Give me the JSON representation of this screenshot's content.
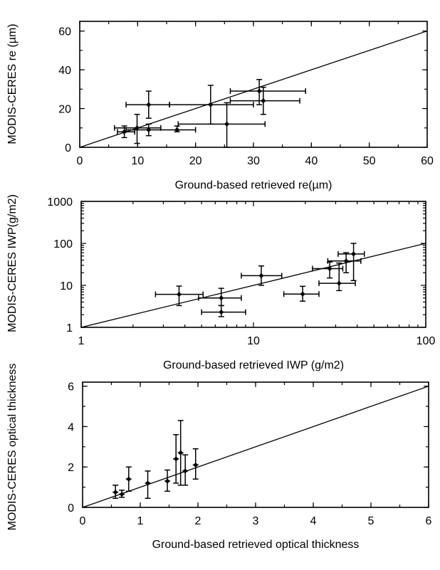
{
  "chart_data": [
    {
      "type": "scatter",
      "xlabel": "Ground-based retrieved re(µm)",
      "ylabel": "MODIS-CERES re (µm)",
      "xscale": "linear",
      "yscale": "linear",
      "xlim": [
        0,
        60
      ],
      "ylim": [
        0,
        65
      ],
      "xticks": [
        "0",
        "10",
        "20",
        "30",
        "40",
        "50",
        "60"
      ],
      "xtick_values": [
        0,
        10,
        20,
        30,
        40,
        50,
        60
      ],
      "yticks": [
        "0",
        "20",
        "40",
        "60"
      ],
      "ytick_values": [
        0,
        20,
        40,
        60
      ],
      "reference_line": "1:1",
      "grid": false,
      "points": [
        {
          "x": 7.7,
          "y": 8,
          "xerr": [
            6.5,
            9.5
          ],
          "yerr": [
            5,
            11
          ]
        },
        {
          "x": 9.9,
          "y": 10,
          "xerr": [
            6,
            14
          ],
          "yerr": [
            2,
            17
          ]
        },
        {
          "x": 11.9,
          "y": 9,
          "xerr": [
            8,
            20
          ],
          "yerr": [
            6,
            12
          ]
        },
        {
          "x": 11.9,
          "y": 22,
          "xerr": [
            8,
            15.5
          ],
          "yerr": [
            15,
            29
          ]
        },
        {
          "x": 16.8,
          "y": 9,
          "xerr": [
            16.8,
            16.8
          ],
          "yerr": [
            8,
            11
          ]
        },
        {
          "x": 22.6,
          "y": 22,
          "xerr": [
            15.5,
            30
          ],
          "yerr": [
            12,
            32
          ]
        },
        {
          "x": 25.4,
          "y": 12,
          "xerr": [
            17,
            32
          ],
          "yerr": [
            0,
            23
          ]
        },
        {
          "x": 31,
          "y": 29,
          "xerr": [
            26,
            39
          ],
          "yerr": [
            22,
            35
          ]
        },
        {
          "x": 31.7,
          "y": 24,
          "xerr": [
            26,
            38
          ],
          "yerr": [
            17,
            31
          ]
        }
      ]
    },
    {
      "type": "scatter",
      "xlabel": "Ground-based retrieved IWP (g/m2)",
      "ylabel": "MODIS-CERES IWP(g/m2)",
      "xscale": "log",
      "yscale": "log",
      "xlim": [
        1,
        100
      ],
      "ylim": [
        1,
        1000
      ],
      "xticks": [
        "1",
        "10",
        "100"
      ],
      "xtick_values": [
        1,
        10,
        100
      ],
      "yticks": [
        "1",
        "10",
        "100",
        "1000"
      ],
      "ytick_values": [
        1,
        10,
        100,
        1000
      ],
      "reference_line": "1:1",
      "grid": false,
      "points": [
        {
          "x": 3.7,
          "y": 6.1,
          "xerr": [
            2.7,
            5.1
          ],
          "yerr": [
            3.3,
            9.6
          ]
        },
        {
          "x": 6.5,
          "y": 5.0,
          "xerr": [
            4.8,
            8.5
          ],
          "yerr": [
            3.3,
            8.5
          ]
        },
        {
          "x": 6.5,
          "y": 2.3,
          "xerr": [
            5.0,
            9.0
          ],
          "yerr": [
            1.8,
            3.3
          ]
        },
        {
          "x": 11.1,
          "y": 17,
          "xerr": [
            8.5,
            14.6
          ],
          "yerr": [
            10,
            29
          ]
        },
        {
          "x": 19.3,
          "y": 6.2,
          "xerr": [
            15,
            24
          ],
          "yerr": [
            4.2,
            9.5
          ]
        },
        {
          "x": 27.7,
          "y": 25,
          "xerr": [
            22,
            33
          ],
          "yerr": [
            15,
            36
          ]
        },
        {
          "x": 31.4,
          "y": 11.2,
          "xerr": [
            24,
            39
          ],
          "yerr": [
            7.5,
            34
          ]
        },
        {
          "x": 34.5,
          "y": 38,
          "xerr": [
            27,
            42
          ],
          "yerr": [
            20,
            60
          ]
        },
        {
          "x": 38.1,
          "y": 56,
          "xerr": [
            31,
            44
          ],
          "yerr": [
            13,
            100
          ]
        }
      ]
    },
    {
      "type": "scatter",
      "xlabel": "Ground-based retrieved optical thickness",
      "ylabel": "MODIS-CERES optical thickness",
      "xscale": "linear",
      "yscale": "linear",
      "xlim": [
        0,
        6
      ],
      "ylim": [
        0,
        6.2
      ],
      "xticks": [
        "0",
        "1",
        "2",
        "3",
        "4",
        "5",
        "6"
      ],
      "xtick_values": [
        0,
        1,
        2,
        3,
        4,
        5,
        6
      ],
      "yticks": [
        "0",
        "2",
        "4",
        "6"
      ],
      "ytick_values": [
        0,
        2,
        4,
        6
      ],
      "reference_line": "1:1",
      "grid": false,
      "points": [
        {
          "x": 0.57,
          "y": 0.75,
          "xerr": [
            0.57,
            0.57
          ],
          "yerr": [
            0.45,
            1.1
          ]
        },
        {
          "x": 0.68,
          "y": 0.65,
          "xerr": [
            0.68,
            0.68
          ],
          "yerr": [
            0.5,
            0.85
          ]
        },
        {
          "x": 0.8,
          "y": 1.4,
          "xerr": [
            0.8,
            0.8
          ],
          "yerr": [
            0.8,
            2.0
          ]
        },
        {
          "x": 1.13,
          "y": 1.2,
          "xerr": [
            1.13,
            1.13
          ],
          "yerr": [
            0.45,
            1.8
          ]
        },
        {
          "x": 1.47,
          "y": 1.3,
          "xerr": [
            1.47,
            1.47
          ],
          "yerr": [
            0.8,
            1.85
          ]
        },
        {
          "x": 1.62,
          "y": 2.4,
          "xerr": [
            1.62,
            1.62
          ],
          "yerr": [
            1.2,
            3.6
          ]
        },
        {
          "x": 1.7,
          "y": 2.7,
          "xerr": [
            1.7,
            1.7
          ],
          "yerr": [
            1.1,
            4.3
          ]
        },
        {
          "x": 1.78,
          "y": 1.8,
          "xerr": [
            1.78,
            1.78
          ],
          "yerr": [
            1.1,
            2.6
          ]
        },
        {
          "x": 1.96,
          "y": 2.1,
          "xerr": [
            1.96,
            1.96
          ],
          "yerr": [
            1.4,
            2.9
          ]
        }
      ]
    }
  ]
}
